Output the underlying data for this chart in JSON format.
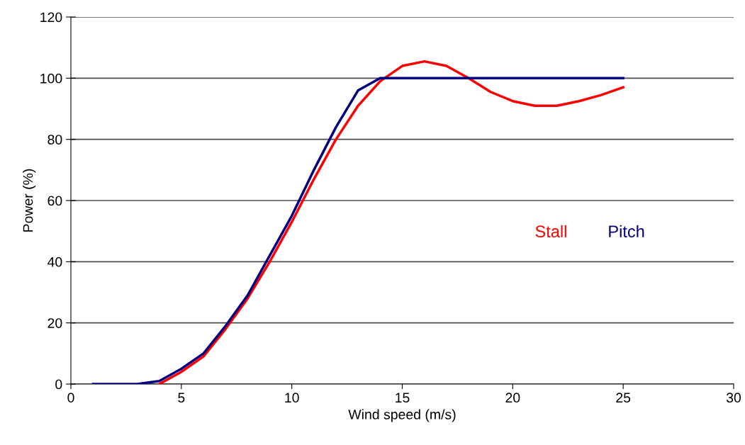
{
  "chart_data": {
    "type": "line",
    "xlabel": "Wind speed (m/s)",
    "ylabel": "Power (%)",
    "xlim": [
      0,
      30
    ],
    "xticks": [
      0,
      5,
      10,
      15,
      20,
      25,
      30
    ],
    "ylim": [
      0,
      120
    ],
    "yticks": [
      0,
      20,
      40,
      60,
      80,
      100,
      120
    ],
    "grid": "y",
    "legend": false,
    "marker": "none",
    "line_style": "solid",
    "series": [
      {
        "name": "Stall",
        "color": "#ff0000",
        "x": [
          4,
          5,
          6,
          7,
          8,
          9,
          10,
          11,
          12,
          13,
          14,
          15,
          16,
          17,
          18,
          19,
          20,
          21,
          22,
          23,
          24,
          25
        ],
        "values": [
          0,
          4,
          9,
          18,
          28,
          40,
          53,
          67,
          80,
          91,
          99,
          104,
          105.5,
          104,
          100,
          95.5,
          92.5,
          91,
          91,
          92.5,
          94.5,
          97
        ]
      },
      {
        "name": "Pitch",
        "color": "#000080",
        "x": [
          1,
          2,
          3,
          4,
          5,
          6,
          7,
          8,
          9,
          10,
          11,
          12,
          13,
          14,
          15,
          16,
          17,
          18,
          19,
          20,
          21,
          22,
          23,
          24,
          25
        ],
        "values": [
          0,
          0,
          0,
          1,
          5,
          10,
          19,
          29,
          42,
          55,
          70,
          84,
          96,
          100,
          100,
          100,
          100,
          100,
          100,
          100,
          100,
          100,
          100,
          100,
          100
        ]
      }
    ]
  }
}
